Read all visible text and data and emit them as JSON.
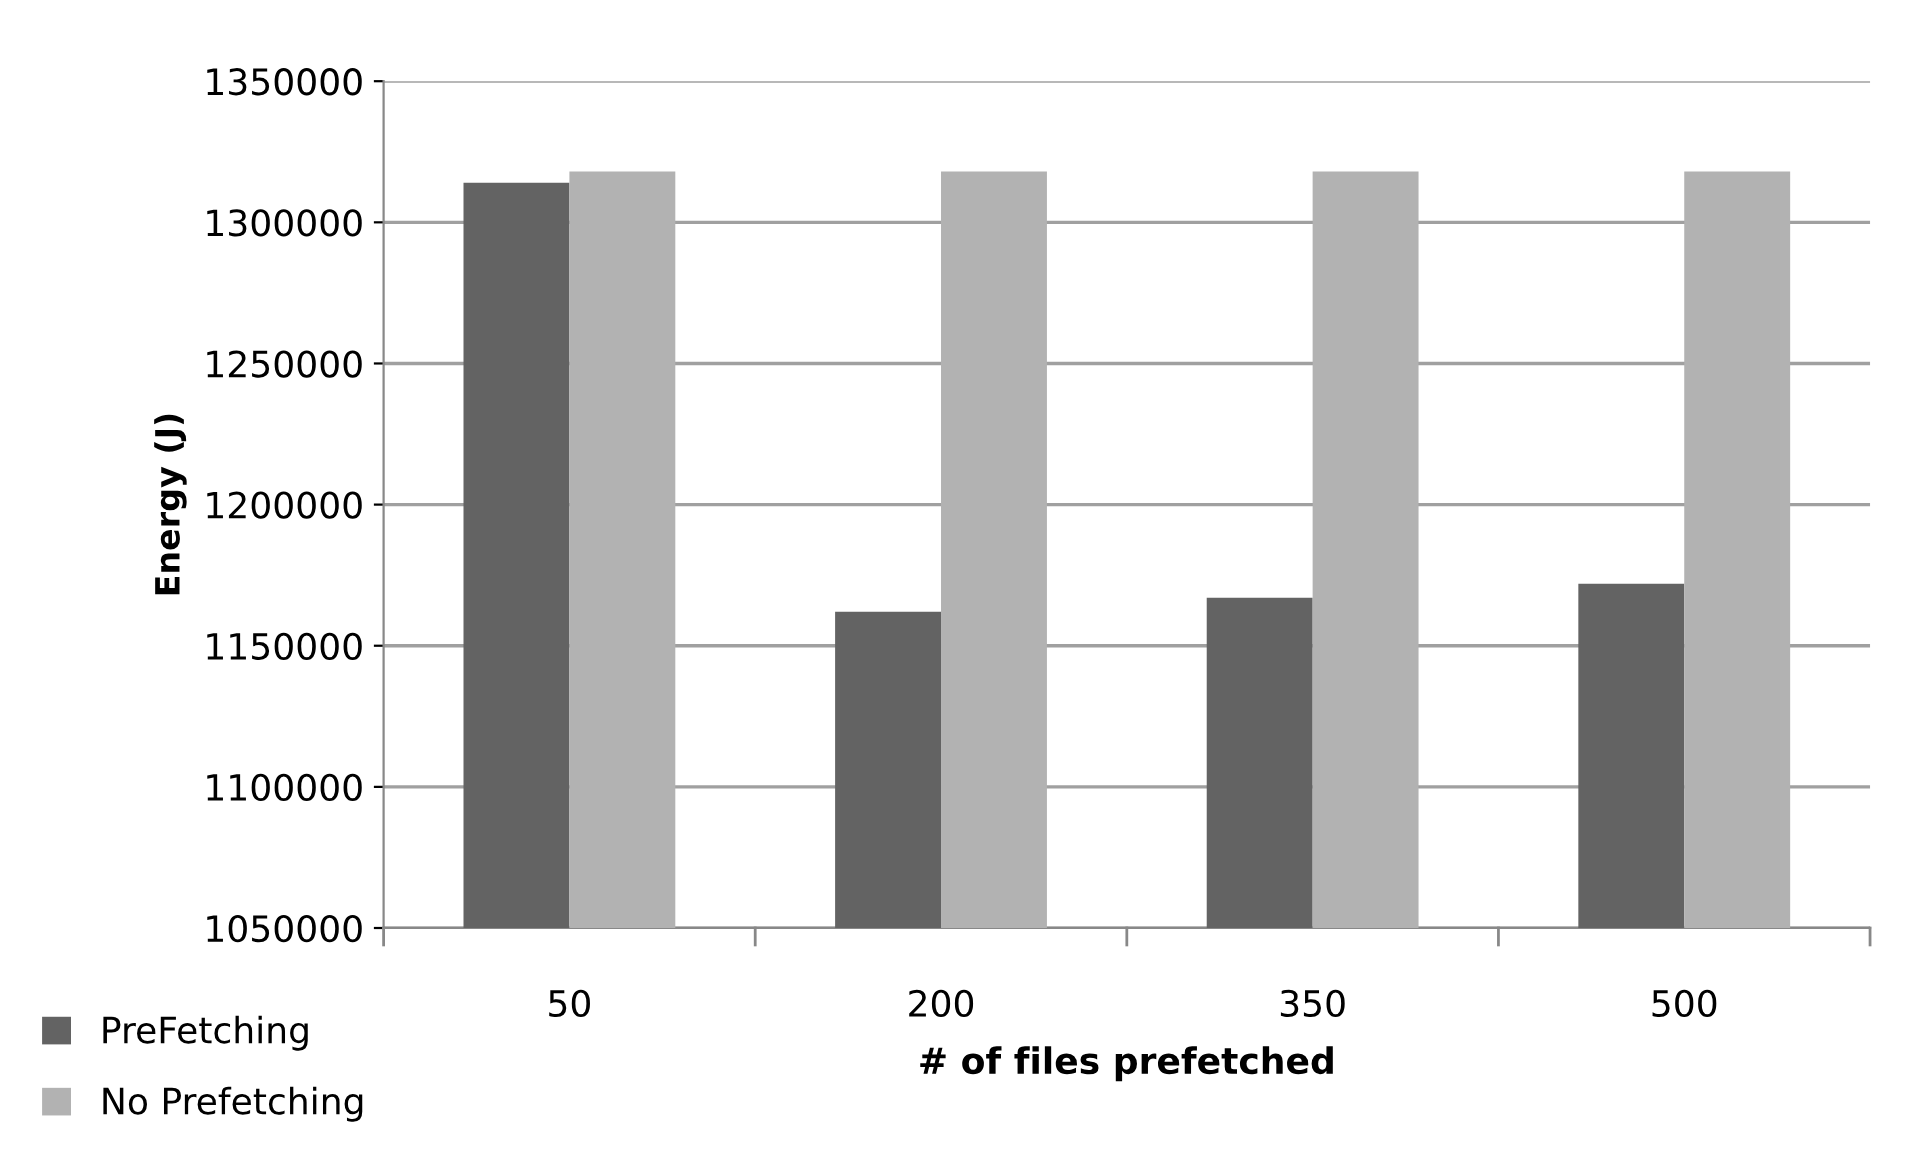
{
  "chart_data": {
    "type": "bar",
    "xlabel": "# of files prefetched",
    "ylabel": "Energy (J)",
    "categories": [
      "50",
      "200",
      "350",
      "500"
    ],
    "series": [
      {
        "name": "PreFetching",
        "color": "#636363",
        "values": [
          1314000,
          1162000,
          1167000,
          1172000
        ]
      },
      {
        "name": "No Prefetching",
        "color": "#b2b2b2",
        "values": [
          1318000,
          1318000,
          1318000,
          1318000
        ]
      }
    ],
    "ylim": [
      1050000,
      1350000
    ],
    "yticks": [
      1050000,
      1100000,
      1150000,
      1200000,
      1250000,
      1300000,
      1350000
    ],
    "grid": "y",
    "legend": "bottom left"
  }
}
